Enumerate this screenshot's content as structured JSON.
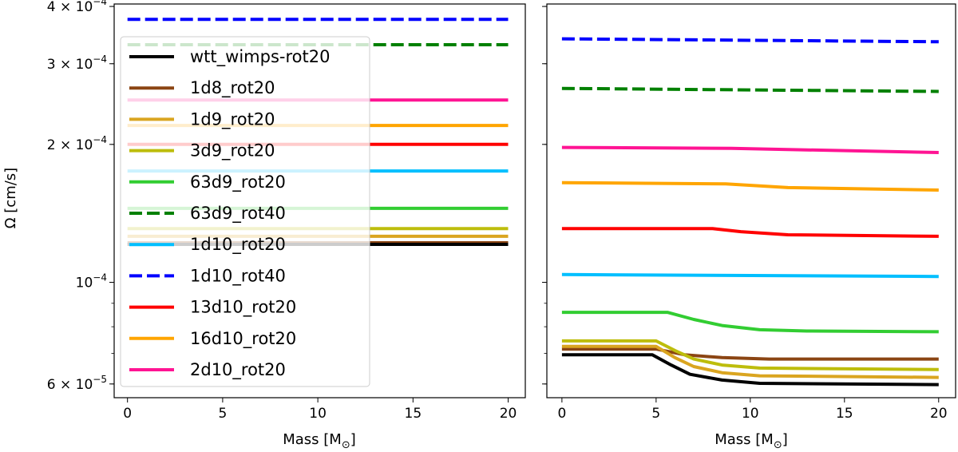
{
  "chart_data": {
    "type": "line",
    "ylabel": "Ω [cm/s]",
    "yscale": "log",
    "ylim": [
      5.6e-05,
      0.000405
    ],
    "shared_y": true,
    "y_ticks": [
      {
        "value": 0.0004,
        "mantissa": "4",
        "exp": "−4",
        "has_mantissa": true
      },
      {
        "value": 0.0003,
        "mantissa": "3",
        "exp": "−4",
        "has_mantissa": true
      },
      {
        "value": 0.0002,
        "mantissa": "2",
        "exp": "−4",
        "has_mantissa": true
      },
      {
        "value": 0.0001,
        "mantissa": "",
        "exp": "−4",
        "has_mantissa": false
      },
      {
        "value": 6e-05,
        "mantissa": "6",
        "exp": "−5",
        "has_mantissa": true
      }
    ],
    "x_ticks": [
      "0",
      "5",
      "10",
      "15",
      "20"
    ],
    "panels": [
      {
        "name": "left",
        "xlabel_text": "Mass [M",
        "xlabel_sub": "⊙",
        "xlabel_close": "]",
        "xlim": [
          -0.7,
          20.9
        ],
        "series": [
          {
            "name": "1d10_rot40",
            "color": "#0000ff",
            "dash": "dashed",
            "x": [
              0,
              20
            ],
            "y": [
              0.000375,
              0.000375
            ]
          },
          {
            "name": "63d9_rot40",
            "color": "#008000",
            "dash": "dashed",
            "x": [
              0,
              20
            ],
            "y": [
              0.00033,
              0.00033
            ]
          },
          {
            "name": "2d10_rot20",
            "color": "#ff1493",
            "dash": "solid",
            "x": [
              0,
              20
            ],
            "y": [
              0.00025,
              0.00025
            ]
          },
          {
            "name": "16d10_rot20",
            "color": "#ffa500",
            "dash": "solid",
            "x": [
              0,
              20
            ],
            "y": [
              0.00022,
              0.00022
            ]
          },
          {
            "name": "13d10_rot20",
            "color": "#ff0000",
            "dash": "solid",
            "x": [
              0,
              20
            ],
            "y": [
              0.0002,
              0.0002
            ]
          },
          {
            "name": "1d10_rot20",
            "color": "#00bfff",
            "dash": "solid",
            "x": [
              0,
              20
            ],
            "y": [
              0.000175,
              0.000175
            ]
          },
          {
            "name": "63d9_rot20",
            "color": "#32cd32",
            "dash": "solid",
            "x": [
              0,
              20
            ],
            "y": [
              0.000145,
              0.000145
            ]
          },
          {
            "name": "3d9_rot20",
            "color": "#bdbd0c",
            "dash": "solid",
            "x": [
              0,
              20
            ],
            "y": [
              0.000131,
              0.000131
            ]
          },
          {
            "name": "1d9_rot20",
            "color": "#daa520",
            "dash": "solid",
            "x": [
              0,
              20
            ],
            "y": [
              0.000126,
              0.000126
            ]
          },
          {
            "name": "1d8_rot20",
            "color": "#8b4513",
            "dash": "solid",
            "x": [
              0,
              20
            ],
            "y": [
              0.000122,
              0.000122
            ]
          },
          {
            "name": "wtt_wimps-rot20",
            "color": "#000000",
            "dash": "solid",
            "x": [
              0,
              20
            ],
            "y": [
              0.000121,
              0.000121
            ]
          }
        ]
      },
      {
        "name": "right",
        "xlabel_text": "Mass [M",
        "xlabel_sub": "⊙",
        "xlabel_close": "]",
        "xlim": [
          -0.8,
          20.9
        ],
        "series": [
          {
            "name": "1d10_rot40",
            "color": "#0000ff",
            "dash": "dashed",
            "x": [
              0,
              20
            ],
            "y": [
              0.00034,
              0.000335
            ]
          },
          {
            "name": "63d9_rot40",
            "color": "#008000",
            "dash": "dashed",
            "x": [
              0,
              20
            ],
            "y": [
              0.000265,
              0.000261
            ]
          },
          {
            "name": "2d10_rot20",
            "color": "#ff1493",
            "dash": "solid",
            "x": [
              0,
              9,
              20
            ],
            "y": [
              0.000197,
              0.000196,
              0.000192
            ]
          },
          {
            "name": "16d10_rot20",
            "color": "#ffa500",
            "dash": "solid",
            "x": [
              0,
              8.7,
              12,
              20
            ],
            "y": [
              0.000165,
              0.000164,
              0.000161,
              0.000159
            ]
          },
          {
            "name": "13d10_rot20",
            "color": "#ff0000",
            "dash": "solid",
            "x": [
              0,
              8,
              9.5,
              12,
              20
            ],
            "y": [
              0.000131,
              0.000131,
              0.000129,
              0.000127,
              0.000126
            ]
          },
          {
            "name": "1d10_rot20",
            "color": "#00bfff",
            "dash": "solid",
            "x": [
              0,
              20
            ],
            "y": [
              0.000104,
              0.000103
            ]
          },
          {
            "name": "63d9_rot20",
            "color": "#32cd32",
            "dash": "solid",
            "x": [
              0,
              5.6,
              7,
              8.5,
              10.5,
              13,
              20
            ],
            "y": [
              8.6e-05,
              8.6e-05,
              8.3e-05,
              8.05e-05,
              7.88e-05,
              7.83e-05,
              7.8e-05
            ]
          },
          {
            "name": "1d8_rot20",
            "color": "#8b4513",
            "dash": "solid",
            "x": [
              0,
              5,
              6.5,
              8.5,
              11,
              20
            ],
            "y": [
              7.15e-05,
              7.15e-05,
              6.95e-05,
              6.85e-05,
              6.8e-05,
              6.8e-05
            ]
          },
          {
            "name": "3d9_rot20",
            "color": "#bdbd0c",
            "dash": "solid",
            "x": [
              0,
              5,
              6,
              7,
              8.5,
              10.5,
              20
            ],
            "y": [
              7.45e-05,
              7.45e-05,
              7.1e-05,
              6.8e-05,
              6.6e-05,
              6.5e-05,
              6.45e-05
            ]
          },
          {
            "name": "1d9_rot20",
            "color": "#daa520",
            "dash": "solid",
            "x": [
              0,
              5,
              6,
              7,
              8.5,
              10.5,
              20
            ],
            "y": [
              7.25e-05,
              7.25e-05,
              6.85e-05,
              6.55e-05,
              6.35e-05,
              6.25e-05,
              6.2e-05
            ]
          },
          {
            "name": "wtt_wimps-rot20",
            "color": "#000000",
            "dash": "solid",
            "x": [
              0,
              4.8,
              5.8,
              6.8,
              8.5,
              10.5,
              20
            ],
            "y": [
              6.95e-05,
              6.95e-05,
              6.6e-05,
              6.3e-05,
              6.12e-05,
              6.02e-05,
              5.98e-05
            ]
          }
        ]
      }
    ],
    "legend": {
      "location": "upper-left of left panel",
      "entries": [
        {
          "label": "wtt_wimps-rot20",
          "color": "#000000",
          "dash": "solid"
        },
        {
          "label": "1d8_rot20",
          "color": "#8b4513",
          "dash": "solid"
        },
        {
          "label": "1d9_rot20",
          "color": "#daa520",
          "dash": "solid"
        },
        {
          "label": "3d9_rot20",
          "color": "#bdbd0c",
          "dash": "solid"
        },
        {
          "label": "63d9_rot20",
          "color": "#32cd32",
          "dash": "solid"
        },
        {
          "label": "63d9_rot40",
          "color": "#008000",
          "dash": "dashed"
        },
        {
          "label": "1d10_rot20",
          "color": "#00bfff",
          "dash": "solid"
        },
        {
          "label": "1d10_rot40",
          "color": "#0000ff",
          "dash": "dashed"
        },
        {
          "label": "13d10_rot20",
          "color": "#ff0000",
          "dash": "solid"
        },
        {
          "label": "16d10_rot20",
          "color": "#ffa500",
          "dash": "solid"
        },
        {
          "label": "2d10_rot20",
          "color": "#ff1493",
          "dash": "solid"
        }
      ]
    }
  }
}
